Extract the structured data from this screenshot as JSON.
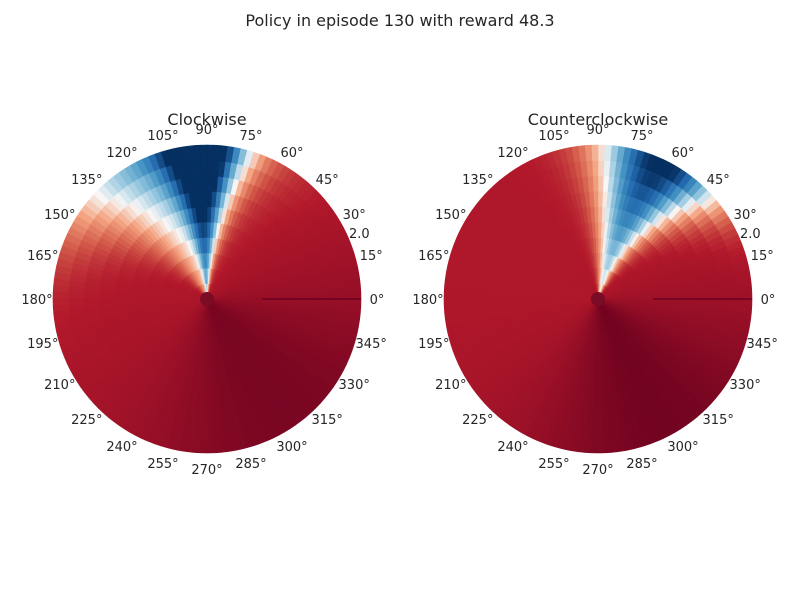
{
  "suptitle": "Policy in episode 130 with reward 48.3",
  "chart_data": [
    {
      "type": "heatmap",
      "projection": "polar",
      "title": "Clockwise",
      "theta_tick_labels": [
        "0°",
        "15°",
        "30°",
        "45°",
        "60°",
        "75°",
        "90°",
        "105°",
        "120°",
        "135°",
        "150°",
        "165°",
        "180°",
        "195°",
        "210°",
        "225°",
        "240°",
        "255°",
        "270°",
        "285°",
        "300°",
        "315°",
        "330°",
        "345°"
      ],
      "r_tick_labels": [
        "2.0"
      ],
      "rlim": [
        0,
        2.0
      ],
      "colormap": "RdBu",
      "clim": [
        -1,
        1
      ],
      "grid": false,
      "field": {
        "base": 0.76,
        "dark_center_deg": 305,
        "dark_amp": 0.18,
        "dark_width_deg": 45,
        "blue_bands": [
          {
            "center_deg": 92,
            "width_deg": 9,
            "amp": 1.75,
            "outward_shift_deg": 0
          },
          {
            "center_deg": 105,
            "width_deg": 22,
            "amp": 1.15,
            "outward_shift_deg": 8
          }
        ]
      }
    },
    {
      "type": "heatmap",
      "projection": "polar",
      "title": "Counterclockwise",
      "theta_tick_labels": [
        "0°",
        "15°",
        "30°",
        "45°",
        "60°",
        "75°",
        "90°",
        "105°",
        "120°",
        "135°",
        "150°",
        "165°",
        "180°",
        "195°",
        "210°",
        "225°",
        "240°",
        "255°",
        "270°",
        "285°",
        "300°",
        "315°",
        "330°",
        "345°"
      ],
      "r_tick_labels": [
        "2.0"
      ],
      "rlim": [
        0,
        2.0
      ],
      "colormap": "RdBu",
      "clim": [
        -1,
        1
      ],
      "grid": false,
      "field": {
        "base": 0.76,
        "dark_center_deg": 298,
        "dark_amp": 0.2,
        "dark_width_deg": 40,
        "blue_bands": [
          {
            "center_deg": 78,
            "width_deg": 14,
            "amp": 1.9,
            "outward_shift_deg": -14
          }
        ]
      }
    }
  ]
}
